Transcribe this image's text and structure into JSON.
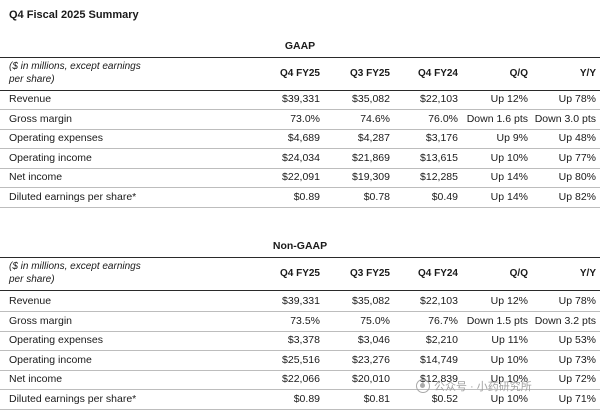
{
  "title": "Q4 Fiscal 2025 Summary",
  "sections": [
    {
      "heading": "GAAP",
      "desc_line1": "($ in millions, except earnings",
      "desc_line2": "per share)",
      "columns": [
        "Q4 FY25",
        "Q3 FY25",
        "Q4 FY24",
        "Q/Q",
        "Y/Y"
      ],
      "rows": [
        {
          "label": "Revenue",
          "q4fy25": "$39,331",
          "q3fy25": "$35,082",
          "q4fy24": "$22,103",
          "qq": "Up 12%",
          "yy": "Up 78%"
        },
        {
          "label": "Gross margin",
          "q4fy25": "73.0%",
          "q3fy25": "74.6%",
          "q4fy24": "76.0%",
          "qq": "Down 1.6 pts",
          "yy": "Down 3.0 pts"
        },
        {
          "label": "Operating expenses",
          "q4fy25": "$4,689",
          "q3fy25": "$4,287",
          "q4fy24": "$3,176",
          "qq": "Up 9%",
          "yy": "Up 48%"
        },
        {
          "label": "Operating income",
          "q4fy25": "$24,034",
          "q3fy25": "$21,869",
          "q4fy24": "$13,615",
          "qq": "Up 10%",
          "yy": "Up 77%"
        },
        {
          "label": "Net income",
          "q4fy25": "$22,091",
          "q3fy25": "$19,309",
          "q4fy24": "$12,285",
          "qq": "Up 14%",
          "yy": "Up 80%"
        },
        {
          "label": "Diluted earnings per share*",
          "q4fy25": "$0.89",
          "q3fy25": "$0.78",
          "q4fy24": "$0.49",
          "qq": "Up 14%",
          "yy": "Up 82%"
        }
      ]
    },
    {
      "heading": "Non-GAAP",
      "desc_line1": "($ in millions, except earnings",
      "desc_line2": "per share)",
      "columns": [
        "Q4 FY25",
        "Q3 FY25",
        "Q4 FY24",
        "Q/Q",
        "Y/Y"
      ],
      "rows": [
        {
          "label": "Revenue",
          "q4fy25": "$39,331",
          "q3fy25": "$35,082",
          "q4fy24": "$22,103",
          "qq": "Up 12%",
          "yy": "Up 78%"
        },
        {
          "label": "Gross margin",
          "q4fy25": "73.5%",
          "q3fy25": "75.0%",
          "q4fy24": "76.7%",
          "qq": "Down 1.5 pts",
          "yy": "Down 3.2 pts"
        },
        {
          "label": "Operating expenses",
          "q4fy25": "$3,378",
          "q3fy25": "$3,046",
          "q4fy24": "$2,210",
          "qq": "Up 11%",
          "yy": "Up 53%"
        },
        {
          "label": "Operating income",
          "q4fy25": "$25,516",
          "q3fy25": "$23,276",
          "q4fy24": "$14,749",
          "qq": "Up 10%",
          "yy": "Up 73%"
        },
        {
          "label": "Net income",
          "q4fy25": "$22,066",
          "q3fy25": "$20,010",
          "q4fy24": "$12,839",
          "qq": "Up 10%",
          "yy": "Up 72%"
        },
        {
          "label": "Diluted earnings per share*",
          "q4fy25": "$0.89",
          "q3fy25": "$0.81",
          "q4fy24": "$0.52",
          "qq": "Up 10%",
          "yy": "Up 71%"
        }
      ]
    }
  ],
  "watermark": {
    "text": "公众号 · 小药研究所",
    "icon": "wechat-logo-icon"
  }
}
